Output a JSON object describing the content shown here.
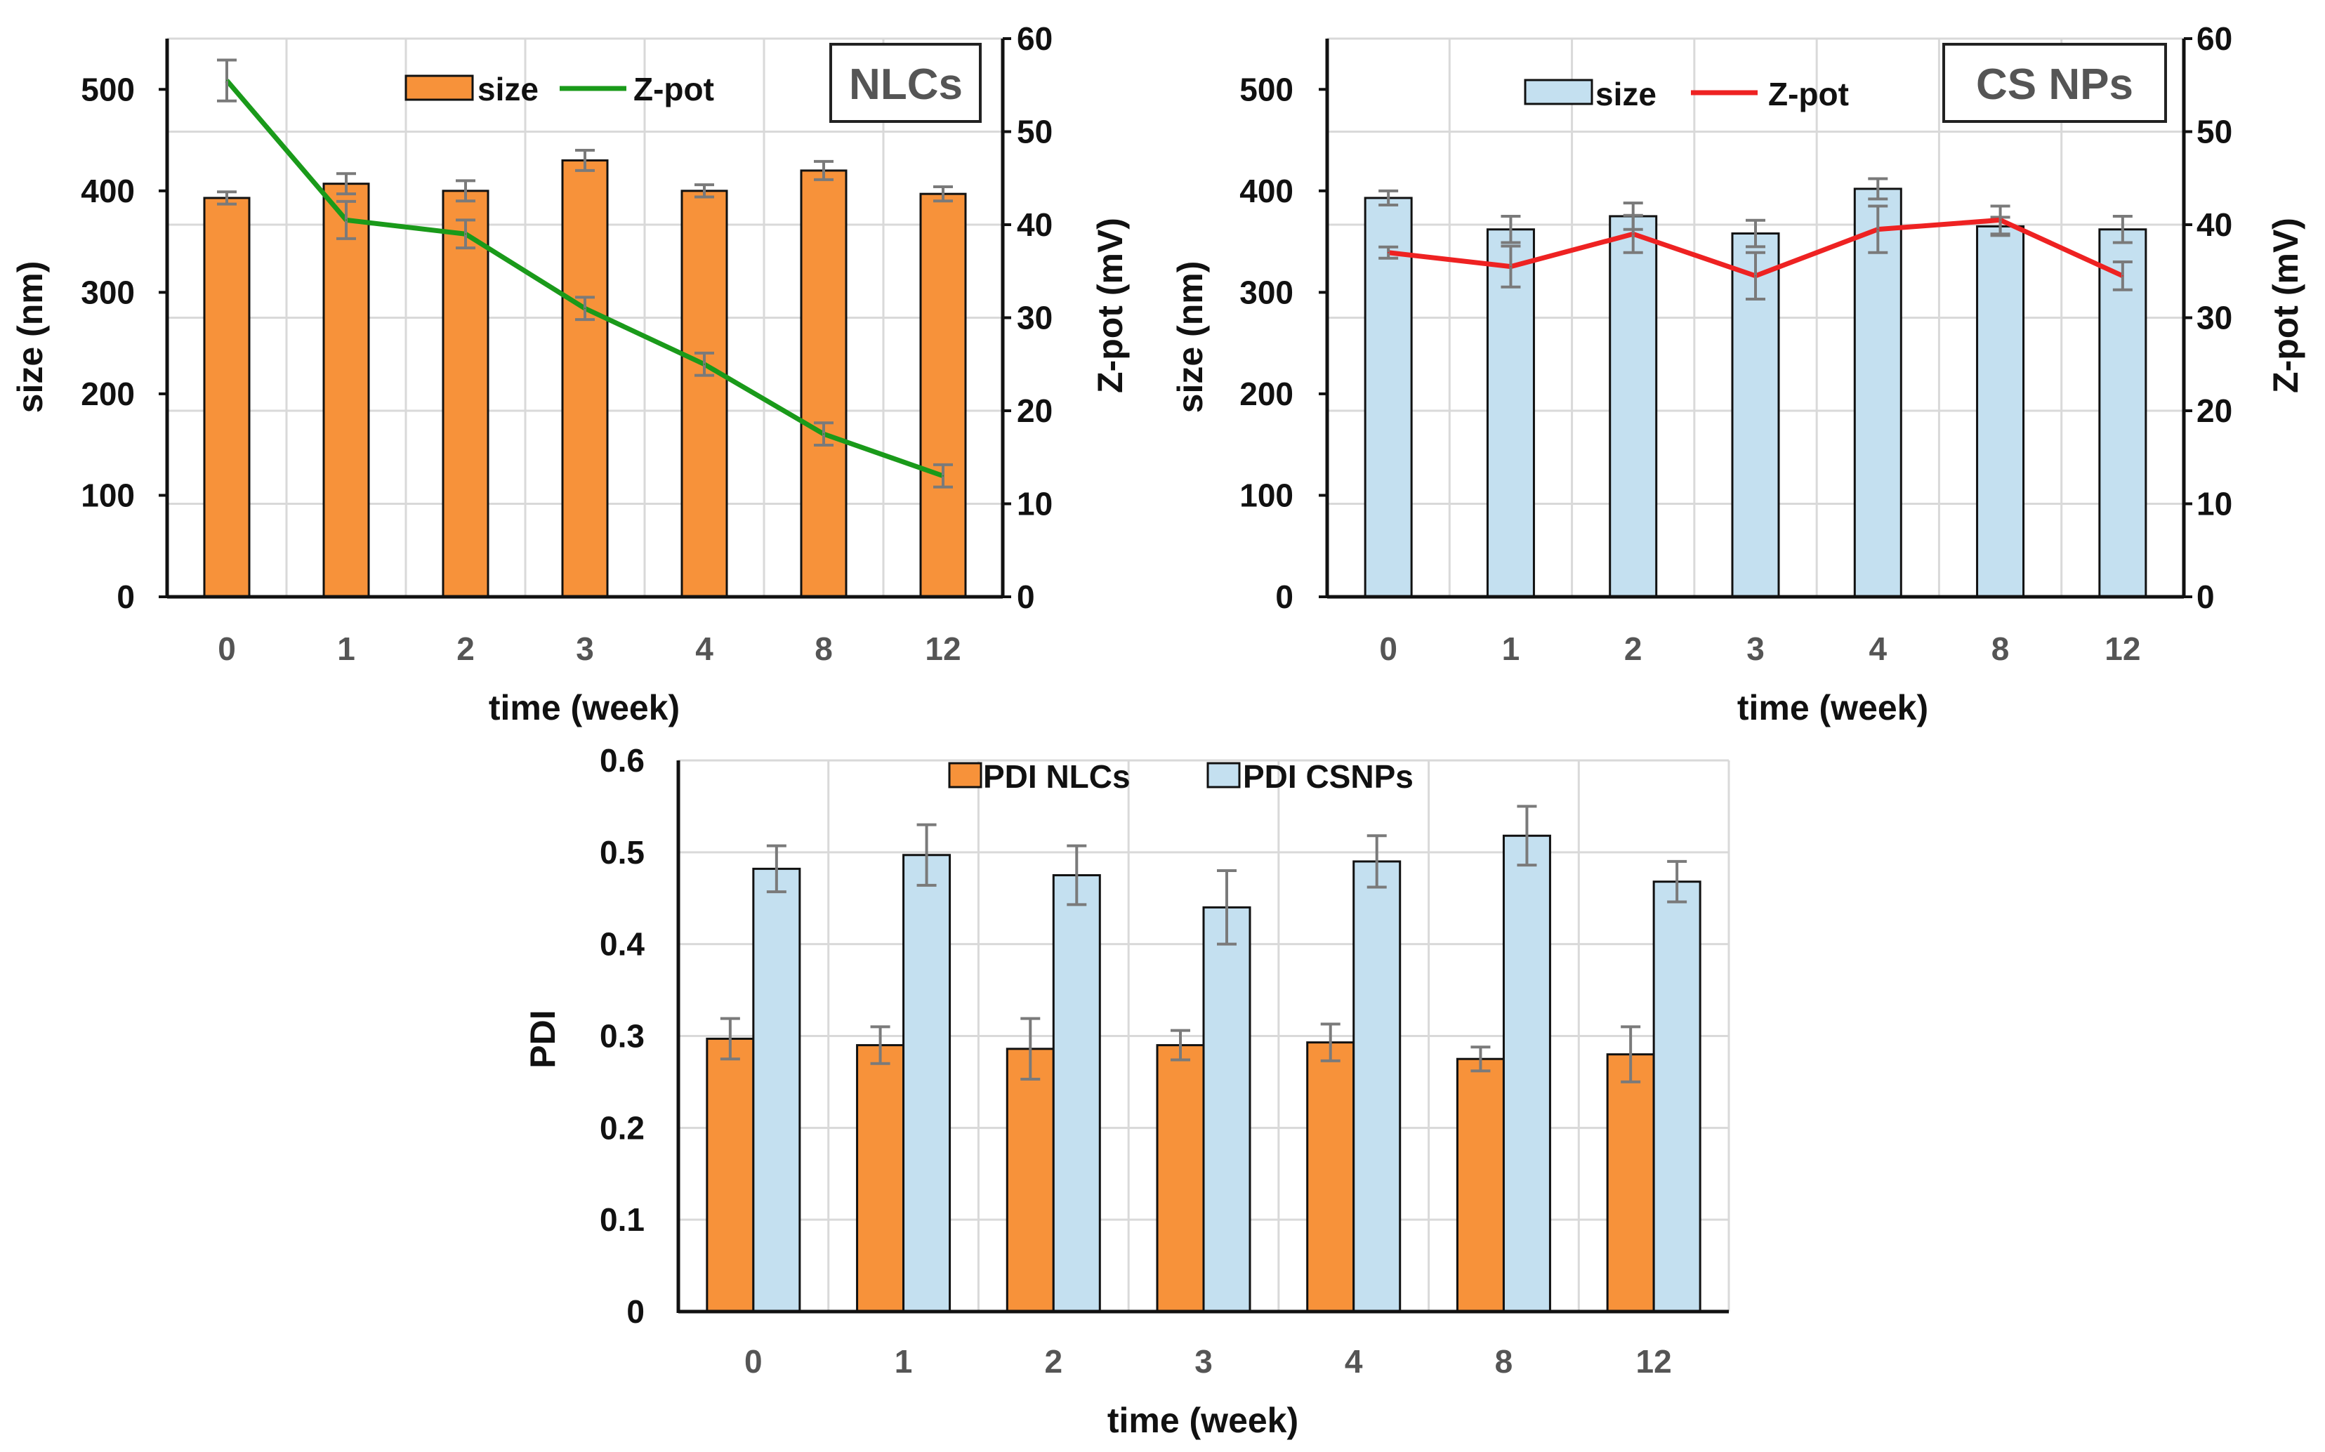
{
  "colors": {
    "nlc_bar": "#f7923a",
    "cs_bar": "#c4e0f0",
    "nlc_line": "#1a9a1a",
    "cs_line": "#ee2222",
    "error_bar": "#7a7a7a",
    "grid": "#d9d9d9"
  },
  "chart_data": [
    {
      "type": "bar+line",
      "id": "nlc",
      "box_label": "NLCs",
      "categories": [
        "0",
        "1",
        "2",
        "3",
        "4",
        "8",
        "12"
      ],
      "xlabel": "time (week)",
      "ylabel": "size (nm)",
      "y2label": "Z-pot (mV)",
      "ylim": [
        0,
        550
      ],
      "yticks": [
        "0",
        "100",
        "200",
        "300",
        "400",
        "500"
      ],
      "y2lim": [
        0,
        60
      ],
      "y2ticks": [
        "0",
        "10",
        "20",
        "30",
        "40",
        "50",
        "60"
      ],
      "legend": {
        "bar": "size",
        "line": "Z-pot",
        "position": "top-center"
      },
      "grid": true,
      "size": {
        "values": [
          393,
          407,
          400,
          430,
          400,
          420,
          397
        ],
        "errors": [
          6,
          10,
          10,
          10,
          6,
          9,
          7
        ]
      },
      "zpot": {
        "values": [
          55.5,
          40.5,
          39,
          31,
          25,
          17.5,
          13
        ],
        "errors": [
          2.2,
          2,
          1.5,
          1.2,
          1.2,
          1.2,
          1.2
        ]
      }
    },
    {
      "type": "bar+line",
      "id": "cs",
      "box_label": "CS NPs",
      "categories": [
        "0",
        "1",
        "2",
        "3",
        "4",
        "8",
        "12"
      ],
      "xlabel": "time (week)",
      "ylabel": "size (nm)",
      "y2label": "Z-pot (mV)",
      "ylim": [
        0,
        550
      ],
      "yticks": [
        "0",
        "100",
        "200",
        "300",
        "400",
        "500"
      ],
      "y2lim": [
        0,
        60
      ],
      "y2ticks": [
        "0",
        "10",
        "20",
        "30",
        "40",
        "50",
        "60"
      ],
      "legend": {
        "bar": "size",
        "line": "Z-pot",
        "position": "top-center"
      },
      "grid": true,
      "size": {
        "values": [
          393,
          362,
          375,
          358,
          402,
          365,
          362
        ],
        "errors": [
          7,
          13,
          13,
          13,
          10,
          9,
          13
        ]
      },
      "zpot": {
        "values": [
          37,
          35.5,
          39,
          34.5,
          39.5,
          40.5,
          34.5
        ],
        "errors": [
          0.6,
          2.2,
          2,
          2.5,
          2.5,
          1.5,
          1.5
        ]
      }
    },
    {
      "type": "bar",
      "id": "pdi",
      "categories": [
        "0",
        "1",
        "2",
        "3",
        "4",
        "8",
        "12"
      ],
      "xlabel": "time (week)",
      "ylabel": "PDI",
      "ylim": [
        0,
        0.6
      ],
      "yticks": [
        "0",
        "0.1",
        "0.2",
        "0.3",
        "0.4",
        "0.5",
        "0.6"
      ],
      "grid": true,
      "legend": {
        "position": "top-center"
      },
      "series": [
        {
          "name": "PDI NLCs",
          "values": [
            0.297,
            0.29,
            0.286,
            0.29,
            0.293,
            0.275,
            0.28
          ],
          "errors": [
            0.022,
            0.02,
            0.033,
            0.016,
            0.02,
            0.013,
            0.03
          ]
        },
        {
          "name": "PDI CSNPs",
          "values": [
            0.482,
            0.497,
            0.475,
            0.44,
            0.49,
            0.518,
            0.468
          ],
          "errors": [
            0.025,
            0.033,
            0.032,
            0.04,
            0.028,
            0.032,
            0.022
          ]
        }
      ]
    }
  ]
}
